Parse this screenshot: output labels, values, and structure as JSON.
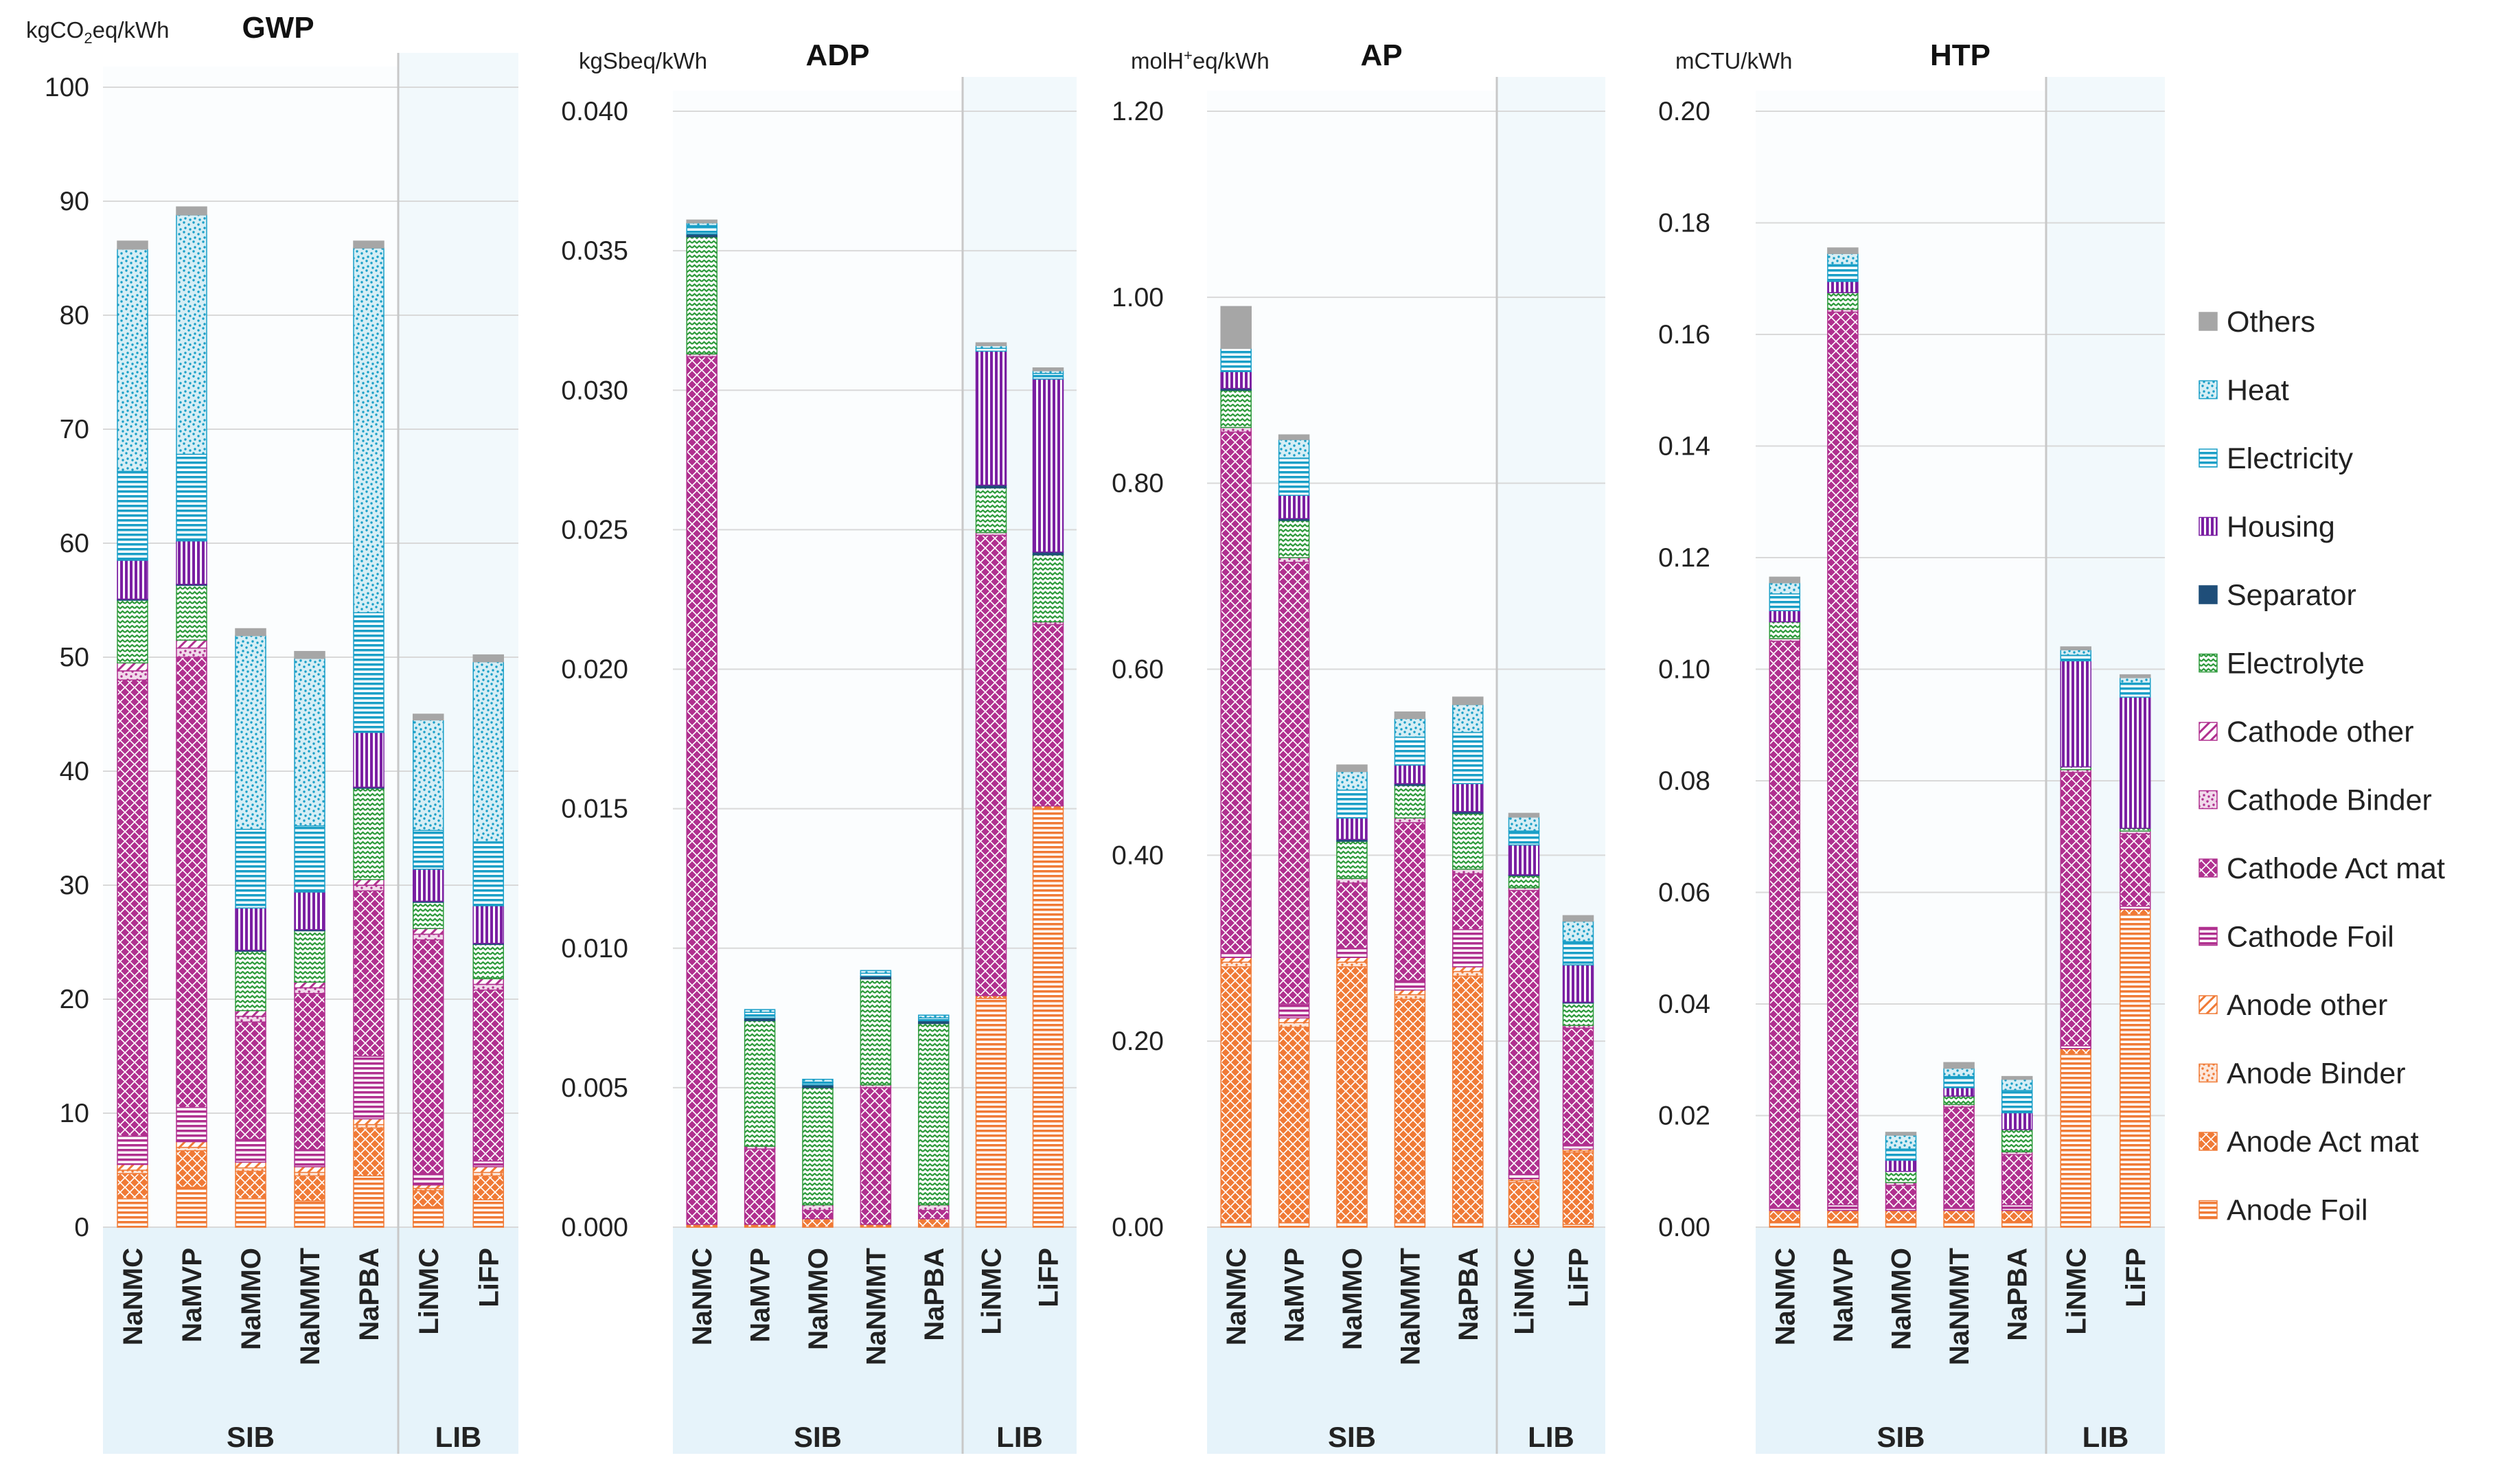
{
  "chart_data": [
    {
      "type": "bar",
      "title": "GWP",
      "ylabel_text": "kgCO",
      "ylabel_sub": "2",
      "ylabel_tail": "eq/kWh",
      "ylim": [
        0,
        100
      ],
      "ticks": [
        "0",
        "10",
        "20",
        "30",
        "40",
        "50",
        "60",
        "70",
        "80",
        "90",
        "100"
      ],
      "categories": [
        "NaNMC",
        "NaMVP",
        "NaMMO",
        "NaNMMT",
        "NaPBA",
        "LiNMC",
        "LiFP"
      ],
      "groups": [
        {
          "label": "SIB",
          "count": 5
        },
        {
          "label": "LIB",
          "count": 2
        }
      ],
      "series": [
        {
          "name": "Anode Foil",
          "values": [
            2.5,
            3.5,
            2.5,
            2.3,
            4.5,
            1.8,
            2.4
          ]
        },
        {
          "name": "Anode Act mat",
          "values": [
            2.2,
            3.2,
            2.4,
            2.2,
            4.2,
            1.4,
            2.1
          ]
        },
        {
          "name": "Anode Binder",
          "values": [
            0.3,
            0.3,
            0.3,
            0.3,
            0.3,
            0.2,
            0.3
          ]
        },
        {
          "name": "Anode other",
          "values": [
            0.5,
            0.5,
            0.5,
            0.5,
            0.5,
            0.3,
            0.5
          ]
        },
        {
          "name": "Cathode Foil",
          "values": [
            2.5,
            3.0,
            2.0,
            1.5,
            5.5,
            1.0,
            0.5
          ]
        },
        {
          "name": "Cathode Act mat",
          "values": [
            40.0,
            39.5,
            10.3,
            13.7,
            14.5,
            20.5,
            15.0
          ]
        },
        {
          "name": "Cathode Binder",
          "values": [
            0.8,
            0.8,
            0.5,
            0.5,
            0.5,
            0.5,
            0.5
          ]
        },
        {
          "name": "Cathode other",
          "values": [
            0.7,
            0.7,
            0.5,
            0.5,
            0.5,
            0.5,
            0.5
          ]
        },
        {
          "name": "Electrolyte",
          "values": [
            5.5,
            4.8,
            5.2,
            4.5,
            8.0,
            2.3,
            3.0
          ]
        },
        {
          "name": "Separator",
          "values": [
            0.1,
            0.1,
            0.1,
            0.1,
            0.1,
            0.1,
            0.1
          ]
        },
        {
          "name": "Housing",
          "values": [
            3.4,
            3.8,
            3.7,
            3.3,
            4.8,
            2.8,
            3.3
          ]
        },
        {
          "name": "Electricity",
          "values": [
            7.8,
            7.6,
            6.9,
            5.8,
            10.5,
            3.4,
            5.6
          ]
        },
        {
          "name": "Heat",
          "values": [
            19.5,
            21.0,
            17.0,
            14.7,
            32.0,
            9.7,
            15.8
          ]
        },
        {
          "name": "Others",
          "values": [
            0.7,
            0.7,
            0.6,
            0.6,
            0.6,
            0.5,
            0.6
          ]
        }
      ]
    },
    {
      "type": "bar",
      "title": "ADP",
      "ylabel_text": "kgSbeq/kWh",
      "ylim": [
        0,
        0.04
      ],
      "ticks": [
        "0.000",
        "0.005",
        "0.010",
        "0.015",
        "0.020",
        "0.025",
        "0.030",
        "0.035",
        "0.040"
      ],
      "categories": [
        "NaNMC",
        "NaMVP",
        "NaMMO",
        "NaNMMT",
        "NaPBA",
        "LiNMC",
        "LiFP"
      ],
      "groups": [
        {
          "label": "SIB",
          "count": 5
        },
        {
          "label": "LIB",
          "count": 2
        }
      ],
      "series": [
        {
          "name": "Anode Foil",
          "values": [
            0.0,
            0.0,
            0.0,
            0.0,
            0.0,
            0.0082,
            0.015
          ]
        },
        {
          "name": "Anode Act mat",
          "values": [
            0.0001,
            0.0001,
            0.0003,
            0.0001,
            0.0003,
            0.0001,
            0.0001
          ]
        },
        {
          "name": "Anode Binder",
          "values": [
            0,
            0,
            0,
            0,
            0,
            0,
            0
          ]
        },
        {
          "name": "Anode other",
          "values": [
            0,
            0,
            0,
            0,
            0,
            0,
            0
          ]
        },
        {
          "name": "Cathode Foil",
          "values": [
            0.0,
            0.0,
            0.0,
            0.0,
            0.0,
            0.0,
            0.0
          ]
        },
        {
          "name": "Cathode Act mat",
          "values": [
            0.0311,
            0.0027,
            0.0003,
            0.0049,
            0.0003,
            0.0165,
            0.0065
          ]
        },
        {
          "name": "Cathode Binder",
          "values": [
            0.0001,
            0.0001,
            0.0002,
            0.0001,
            0.0002,
            0.0001,
            0.0001
          ]
        },
        {
          "name": "Cathode other",
          "values": [
            0,
            0,
            0,
            0,
            0,
            0,
            0
          ]
        },
        {
          "name": "Electrolyte",
          "values": [
            0.0042,
            0.0045,
            0.0042,
            0.0038,
            0.0065,
            0.0016,
            0.0024
          ]
        },
        {
          "name": "Separator",
          "values": [
            0.0001,
            0.0001,
            0.0001,
            0.0001,
            0.0001,
            0.0001,
            0.0001
          ]
        },
        {
          "name": "Housing",
          "values": [
            0.0,
            0.0,
            0.0,
            0.0,
            0.0,
            0.0048,
            0.0062
          ]
        },
        {
          "name": "Electricity",
          "values": [
            0.0003,
            0.0002,
            0.0001,
            0.0001,
            0.0001,
            0.0001,
            0.0002
          ]
        },
        {
          "name": "Heat",
          "values": [
            0.0001,
            0.0001,
            0.0001,
            0.0001,
            0.0001,
            0.0001,
            0.0001
          ]
        },
        {
          "name": "Others",
          "values": [
            0.0001,
            0.0,
            0.0,
            0.0,
            0.0,
            0.0001,
            0.0001
          ]
        }
      ]
    },
    {
      "type": "bar",
      "title": "AP",
      "ylabel_text": "molH",
      "ylabel_sup": "+",
      "ylabel_tail": "eq/kWh",
      "ylim": [
        0,
        1.2
      ],
      "ticks": [
        "0.00",
        "0.20",
        "0.40",
        "0.60",
        "0.80",
        "1.00",
        "1.20"
      ],
      "categories": [
        "NaNMC",
        "NaMVP",
        "NaMMO",
        "NaNMMT",
        "NaPBA",
        "LiNMC",
        "LiFP"
      ],
      "groups": [
        {
          "label": "SIB",
          "count": 5
        },
        {
          "label": "LIB",
          "count": 2
        }
      ],
      "series": [
        {
          "name": "Anode Foil",
          "values": [
            0.005,
            0.005,
            0.005,
            0.005,
            0.005,
            0.003,
            0.003
          ]
        },
        {
          "name": "Anode Act mat",
          "values": [
            0.275,
            0.21,
            0.275,
            0.24,
            0.265,
            0.045,
            0.077
          ]
        },
        {
          "name": "Anode Binder",
          "values": [
            0.005,
            0.005,
            0.005,
            0.005,
            0.005,
            0.002,
            0.002
          ]
        },
        {
          "name": "Anode other",
          "values": [
            0.005,
            0.005,
            0.005,
            0.005,
            0.005,
            0.002,
            0.002
          ]
        },
        {
          "name": "Cathode Foil",
          "values": [
            0.005,
            0.015,
            0.01,
            0.01,
            0.04,
            0.005,
            0.005
          ]
        },
        {
          "name": "Cathode Act mat",
          "values": [
            0.56,
            0.475,
            0.07,
            0.17,
            0.06,
            0.305,
            0.125
          ]
        },
        {
          "name": "Cathode Binder",
          "values": [
            0.005,
            0.005,
            0.005,
            0.005,
            0.005,
            0.003,
            0.003
          ]
        },
        {
          "name": "Cathode other",
          "values": [
            0.0,
            0.0,
            0.0,
            0.0,
            0.0,
            0.0,
            0.0
          ]
        },
        {
          "name": "Electrolyte",
          "values": [
            0.04,
            0.04,
            0.04,
            0.035,
            0.06,
            0.013,
            0.024
          ]
        },
        {
          "name": "Separator",
          "values": [
            0.002,
            0.002,
            0.002,
            0.002,
            0.002,
            0.001,
            0.001
          ]
        },
        {
          "name": "Housing",
          "values": [
            0.018,
            0.025,
            0.023,
            0.02,
            0.03,
            0.032,
            0.04
          ]
        },
        {
          "name": "Electricity",
          "values": [
            0.025,
            0.04,
            0.03,
            0.03,
            0.055,
            0.015,
            0.025
          ]
        },
        {
          "name": "Heat",
          "values": [
            0.0,
            0.02,
            0.02,
            0.02,
            0.03,
            0.015,
            0.022
          ]
        },
        {
          "name": "Others",
          "values": [
            0.045,
            0.005,
            0.007,
            0.007,
            0.008,
            0.004,
            0.006
          ]
        }
      ]
    },
    {
      "type": "bar",
      "title": "HTP",
      "ylabel_text": "mCTU/kWh",
      "ylim": [
        0,
        0.2
      ],
      "ticks": [
        "0.00",
        "0.02",
        "0.04",
        "0.06",
        "0.08",
        "0.10",
        "0.12",
        "0.14",
        "0.16",
        "0.18",
        "0.20"
      ],
      "categories": [
        "NaNMC",
        "NaMVP",
        "NaMMO",
        "NaNMMT",
        "NaPBA",
        "LiNMC",
        "LiFP"
      ],
      "groups": [
        {
          "label": "SIB",
          "count": 5
        },
        {
          "label": "LIB",
          "count": 2
        }
      ],
      "series": [
        {
          "name": "Anode Foil",
          "values": [
            0.001,
            0.001,
            0.001,
            0.001,
            0.001,
            0.031,
            0.056
          ]
        },
        {
          "name": "Anode Act mat",
          "values": [
            0.002,
            0.002,
            0.002,
            0.002,
            0.002,
            0.001,
            0.001
          ]
        },
        {
          "name": "Anode Binder",
          "values": [
            0.0,
            0.0,
            0.0,
            0.0,
            0.0,
            0.0,
            0.0
          ]
        },
        {
          "name": "Anode other",
          "values": [
            0.0,
            0.0,
            0.0,
            0.0,
            0.0,
            0.0,
            0.0
          ]
        },
        {
          "name": "Cathode Foil",
          "values": [
            0.0005,
            0.001,
            0.0005,
            0.0005,
            0.001,
            0.0005,
            0.0005
          ]
        },
        {
          "name": "Cathode Act mat",
          "values": [
            0.1015,
            0.16,
            0.004,
            0.018,
            0.009,
            0.049,
            0.013
          ]
        },
        {
          "name": "Cathode Binder",
          "values": [
            0.0005,
            0.0005,
            0.0005,
            0.0005,
            0.0005,
            0.0005,
            0.0005
          ]
        },
        {
          "name": "Cathode other",
          "values": [
            0.0,
            0.0,
            0.0,
            0.0,
            0.0,
            0.0,
            0.0
          ]
        },
        {
          "name": "Electrolyte",
          "values": [
            0.003,
            0.003,
            0.002,
            0.0015,
            0.004,
            0.0005,
            0.0005
          ]
        },
        {
          "name": "Separator",
          "values": [
            0.0,
            0.0,
            0.0,
            0.0,
            0.0,
            0.0,
            0.0
          ]
        },
        {
          "name": "Housing",
          "values": [
            0.002,
            0.002,
            0.002,
            0.0015,
            0.003,
            0.019,
            0.0235
          ]
        },
        {
          "name": "Electricity",
          "values": [
            0.003,
            0.003,
            0.002,
            0.002,
            0.004,
            0.001,
            0.0025
          ]
        },
        {
          "name": "Heat",
          "values": [
            0.002,
            0.002,
            0.0025,
            0.0015,
            0.002,
            0.001,
            0.001
          ]
        },
        {
          "name": "Others",
          "values": [
            0.001,
            0.001,
            0.0005,
            0.001,
            0.0005,
            0.0005,
            0.0005
          ]
        }
      ]
    }
  ],
  "legend": {
    "items": [
      {
        "name": "Others",
        "pattern": "solid",
        "color": "#a6a6a6"
      },
      {
        "name": "Heat",
        "pattern": "dots",
        "color": "#1a9fc7"
      },
      {
        "name": "Electricity",
        "pattern": "hlines",
        "color": "#1a9fc7"
      },
      {
        "name": "Housing",
        "pattern": "vlines",
        "color": "#7a1fa2"
      },
      {
        "name": "Separator",
        "pattern": "solid",
        "color": "#1f4e79"
      },
      {
        "name": "Electrolyte",
        "pattern": "wave",
        "color": "#2e9a3c"
      },
      {
        "name": "Cathode other",
        "pattern": "diag",
        "color": "#b0308f"
      },
      {
        "name": "Cathode Binder",
        "pattern": "dots",
        "color": "#b0308f"
      },
      {
        "name": "Cathode Act mat",
        "pattern": "cross",
        "color": "#b0308f"
      },
      {
        "name": "Cathode Foil",
        "pattern": "hlines",
        "color": "#b0308f"
      },
      {
        "name": "Anode other",
        "pattern": "diag",
        "color": "#f07a36"
      },
      {
        "name": "Anode Binder",
        "pattern": "dots",
        "color": "#f07a36"
      },
      {
        "name": "Anode Act mat",
        "pattern": "cross",
        "color": "#f07a36"
      },
      {
        "name": "Anode Foil",
        "pattern": "hlines",
        "color": "#f07a36"
      }
    ]
  }
}
